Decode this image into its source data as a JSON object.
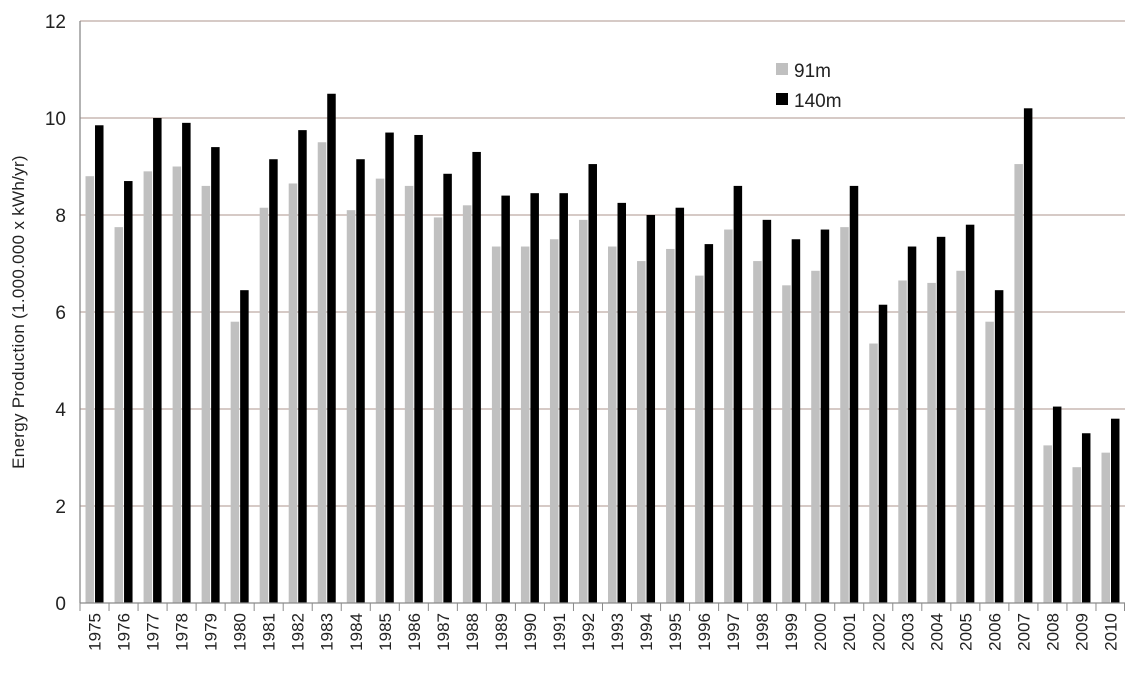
{
  "chart_data": {
    "type": "bar",
    "title": "",
    "xlabel": "",
    "ylabel": "Energy Production (1.000.000 x kWh/yr)",
    "ylim": [
      0,
      12
    ],
    "yticks": [
      "0",
      "2",
      "4",
      "6",
      "8",
      "10",
      "12"
    ],
    "grid": true,
    "legend_position": "top-right",
    "categories": [
      "1975",
      "1976",
      "1977",
      "1978",
      "1979",
      "1980",
      "1981",
      "1982",
      "1983",
      "1984",
      "1985",
      "1986",
      "1987",
      "1988",
      "1989",
      "1990",
      "1991",
      "1992",
      "1993",
      "1994",
      "1995",
      "1996",
      "1997",
      "1998",
      "1999",
      "2000",
      "2001",
      "2002",
      "2003",
      "2004",
      "2005",
      "2006",
      "2007",
      "2008",
      "2009",
      "2010"
    ],
    "series": [
      {
        "name": "91m",
        "color": "#c0c0c0",
        "values": [
          8.8,
          7.75,
          8.9,
          9.0,
          8.6,
          5.8,
          8.15,
          8.65,
          9.5,
          8.1,
          8.75,
          8.6,
          7.95,
          8.2,
          7.35,
          7.35,
          7.5,
          7.9,
          7.35,
          7.05,
          7.3,
          6.75,
          7.7,
          7.05,
          6.55,
          6.85,
          7.75,
          5.35,
          6.65,
          6.6,
          6.85,
          5.8,
          9.05,
          3.25,
          2.8,
          3.1
        ]
      },
      {
        "name": "140m",
        "color": "#000000",
        "values": [
          9.85,
          8.7,
          10.0,
          9.9,
          9.4,
          6.45,
          9.15,
          9.75,
          10.5,
          9.15,
          9.7,
          9.65,
          8.85,
          9.3,
          8.4,
          8.45,
          8.45,
          9.05,
          8.25,
          8.0,
          8.15,
          7.4,
          8.6,
          7.9,
          7.5,
          7.7,
          8.6,
          6.15,
          7.35,
          7.55,
          7.8,
          6.45,
          10.2,
          4.05,
          3.5,
          3.8
        ]
      }
    ]
  }
}
